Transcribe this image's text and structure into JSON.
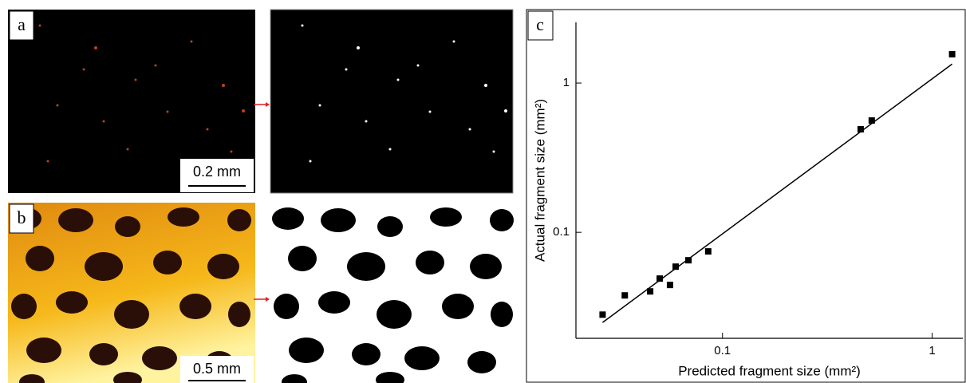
{
  "panels": {
    "a": {
      "label": "a",
      "scale_bar": "0.2 mm"
    },
    "b": {
      "label": "b",
      "scale_bar": "0.5 mm"
    }
  },
  "chart_data": {
    "type": "scatter",
    "label": "c",
    "x_label": "Predicted fragment size (mm²)",
    "y_label": "Actual fragment size (mm²)",
    "x": [
      0.0268,
      0.0342,
      0.0452,
      0.0502,
      0.0562,
      0.0598,
      0.0688,
      0.0855,
      0.456,
      0.515,
      1.245
    ],
    "values": [
      0.0281,
      0.0378,
      0.0402,
      0.049,
      0.0444,
      0.0589,
      0.065,
      0.0745,
      0.49,
      0.561,
      1.56
    ],
    "color": "#000000",
    "fit_line": {
      "x": [
        0.0268,
        1.245
      ],
      "y": [
        0.0249,
        1.34
      ]
    },
    "xlim": [
      0.02,
      1.4
    ],
    "ylim": [
      0.0195,
      2.55
    ],
    "xticks": [
      0.1,
      1
    ],
    "yticks": [
      0.1,
      1
    ],
    "log_scale": true
  }
}
